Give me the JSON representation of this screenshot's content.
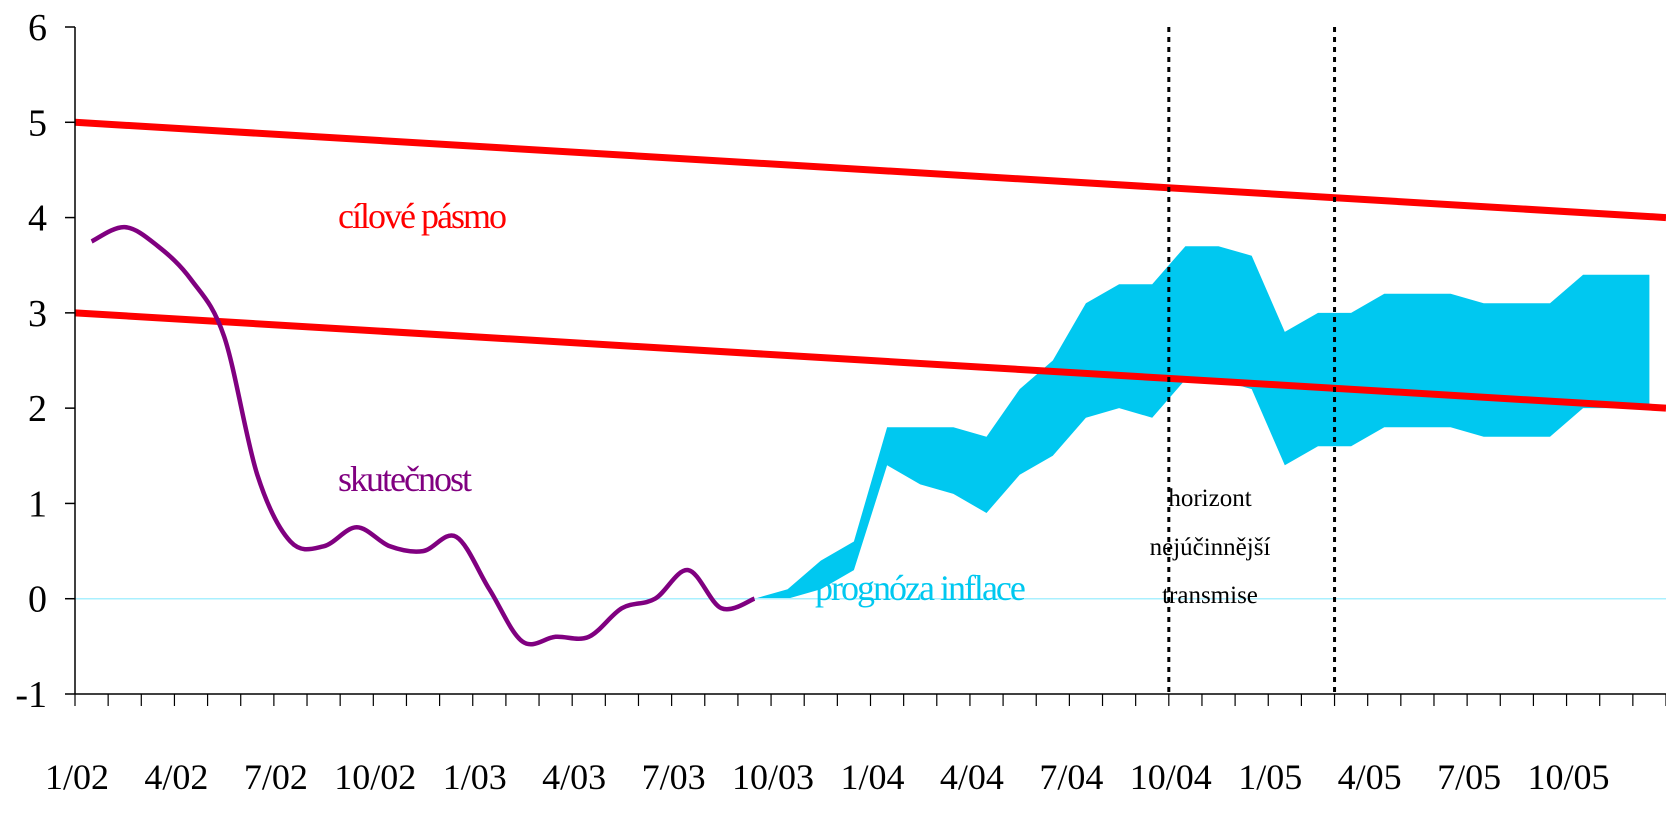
{
  "chart_data": {
    "type": "line",
    "ylim": [
      -1,
      6
    ],
    "y_ticks": [
      -1,
      0,
      1,
      2,
      3,
      4,
      5,
      6
    ],
    "x_start": "1/02",
    "x_end": "12/05",
    "x_tick_labels": [
      "1/02",
      "4/02",
      "7/02",
      "10/02",
      "1/03",
      "4/03",
      "7/03",
      "10/03",
      "1/04",
      "4/04",
      "7/04",
      "10/04",
      "1/05",
      "4/05",
      "7/05",
      "10/05"
    ],
    "annotations": {
      "target_band": "cílové pásmo",
      "actual": "skutečnost",
      "forecast": "prognóza inflace",
      "horizon_line1": "horizont",
      "horizon_line2": "nejúčinnější",
      "horizon_line3": "transmise"
    },
    "colors": {
      "target_band": "#ff0000",
      "actual": "#800080",
      "forecast": "#00c8f0",
      "zero_line": "#aaf0ff"
    },
    "horizon_markers": [
      "10/04",
      "3/05"
    ],
    "target_band_upper": {
      "x": [
        "1/02",
        "12/05"
      ],
      "y": [
        5.0,
        4.0
      ]
    },
    "target_band_lower": {
      "x": [
        "1/02",
        "12/05"
      ],
      "y": [
        3.0,
        2.0
      ]
    },
    "actual_series": {
      "x": [
        "1/02",
        "2/02",
        "3/02",
        "4/02",
        "5/02",
        "6/02",
        "7/02",
        "8/02",
        "9/02",
        "10/02",
        "11/02",
        "12/02",
        "1/03",
        "2/03",
        "3/03",
        "4/03",
        "5/03",
        "6/03",
        "7/03",
        "8/03",
        "9/03"
      ],
      "y": [
        3.75,
        3.9,
        3.7,
        3.35,
        2.75,
        1.3,
        0.6,
        0.55,
        0.75,
        0.55,
        0.5,
        0.65,
        0.1,
        -0.45,
        -0.4,
        -0.4,
        -0.1,
        0.0,
        0.3,
        -0.1,
        0.0
      ]
    },
    "forecast_band": {
      "x": [
        "9/03",
        "10/03",
        "11/03",
        "12/03",
        "1/04",
        "2/04",
        "3/04",
        "4/04",
        "5/04",
        "6/04",
        "7/04",
        "8/04",
        "9/04",
        "10/04",
        "11/04",
        "12/04",
        "1/05",
        "2/05",
        "3/05",
        "4/05",
        "5/05",
        "6/05",
        "7/05",
        "8/05",
        "9/05",
        "10/05",
        "11/05",
        "12/05"
      ],
      "upper": [
        0.0,
        0.1,
        0.4,
        0.6,
        1.8,
        1.8,
        1.8,
        1.7,
        2.2,
        2.5,
        3.1,
        3.3,
        3.3,
        3.7,
        3.7,
        3.6,
        2.8,
        3.0,
        3.0,
        3.2,
        3.2,
        3.2,
        3.1,
        3.1,
        3.1,
        3.4,
        3.4,
        3.4
      ],
      "lower": [
        0.0,
        0.0,
        0.1,
        0.3,
        1.4,
        1.2,
        1.1,
        0.9,
        1.3,
        1.5,
        1.9,
        2.0,
        1.9,
        2.3,
        2.3,
        2.2,
        1.4,
        1.6,
        1.6,
        1.8,
        1.8,
        1.8,
        1.7,
        1.7,
        1.7,
        2.0,
        2.0,
        2.0
      ]
    }
  }
}
